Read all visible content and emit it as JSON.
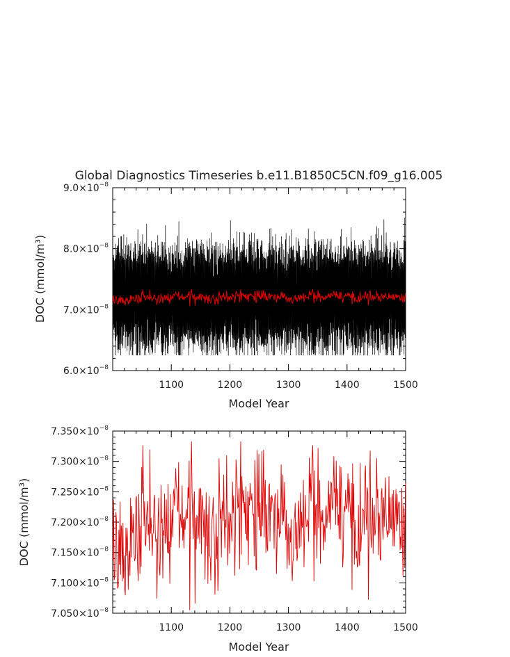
{
  "chart_data": [
    {
      "type": "line",
      "title": "Global Diagnostics Timeseries b.e11.B1850C5CN.f09_g16.005",
      "xlabel": "Model Year",
      "ylabel": "DOC (mmol/m³)",
      "xlim": [
        1000,
        1500
      ],
      "ylim": [
        6e-08,
        9e-08
      ],
      "x_ticks": [
        "1100",
        "1200",
        "1300",
        "1400",
        "1500"
      ],
      "y_ticks": [
        {
          "mant": "6.0×10",
          "exp": "−8"
        },
        {
          "mant": "7.0×10",
          "exp": "−8"
        },
        {
          "mant": "8.0×10",
          "exp": "−8"
        },
        {
          "mant": "9.0×10",
          "exp": "−8"
        }
      ],
      "series": [
        {
          "color": "#000000",
          "resolution": "monthly",
          "mean": 7.2e-08,
          "approx_min": 6.25e-08,
          "approx_max": 8.8e-08
        },
        {
          "color": "#e00000",
          "resolution": "annual",
          "mean": 7.2e-08,
          "approx_min": 7.06e-08,
          "approx_max": 7.33e-08
        }
      ]
    },
    {
      "type": "line",
      "title": "",
      "xlabel": "Model Year",
      "ylabel": "DOC (mmol/m³)",
      "xlim": [
        1000,
        1500
      ],
      "ylim": [
        7.05e-08,
        7.35e-08
      ],
      "x_ticks": [
        "1100",
        "1200",
        "1300",
        "1400",
        "1500"
      ],
      "y_ticks": [
        {
          "mant": "7.050×10",
          "exp": "−8"
        },
        {
          "mant": "7.100×10",
          "exp": "−8"
        },
        {
          "mant": "7.150×10",
          "exp": "−8"
        },
        {
          "mant": "7.200×10",
          "exp": "−8"
        },
        {
          "mant": "7.250×10",
          "exp": "−8"
        },
        {
          "mant": "7.300×10",
          "exp": "−8"
        },
        {
          "mant": "7.350×10",
          "exp": "−8"
        }
      ],
      "series": [
        {
          "color": "#e00000",
          "resolution": "annual",
          "x": [
            1000,
            1020,
            1040,
            1060,
            1080,
            1100,
            1120,
            1140,
            1160,
            1180,
            1200,
            1220,
            1240,
            1260,
            1280,
            1300,
            1320,
            1340,
            1360,
            1380,
            1400,
            1420,
            1440,
            1460,
            1480,
            1500
          ],
          "values": [
            7.16e-08,
            7.17e-08,
            7.18e-08,
            7.19e-08,
            7.18e-08,
            7.19e-08,
            7.21e-08,
            7.2e-08,
            7.19e-08,
            7.19e-08,
            7.2e-08,
            7.21e-08,
            7.22e-08,
            7.21e-08,
            7.2e-08,
            7.19e-08,
            7.2e-08,
            7.21e-08,
            7.22e-08,
            7.22e-08,
            7.21e-08,
            7.2e-08,
            7.21e-08,
            7.2e-08,
            7.21e-08,
            7.21e-08
          ],
          "approx_min": 7.055e-08,
          "approx_max": 7.333e-08
        }
      ]
    }
  ]
}
